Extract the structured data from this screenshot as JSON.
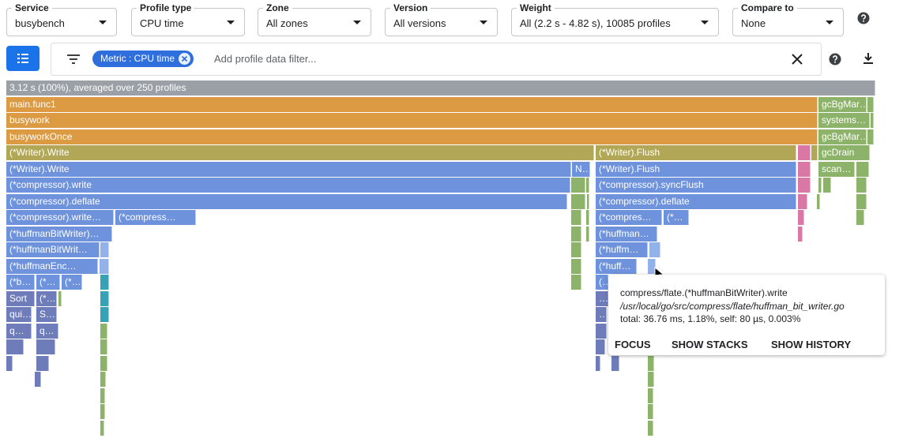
{
  "controls": [
    {
      "label": "Service",
      "value": "busybench"
    },
    {
      "label": "Profile type",
      "value": "CPU time"
    },
    {
      "label": "Zone",
      "value": "All zones"
    },
    {
      "label": "Version",
      "value": "All versions"
    },
    {
      "label": "Weight",
      "value": "All (2.2 s - 4.82 s), 10085 profiles"
    },
    {
      "label": "Compare to",
      "value": "None"
    }
  ],
  "filter": {
    "chip": "Metric : CPU time",
    "placeholder": "Add profile data filter..."
  },
  "flame": {
    "frames": [
      "3.12 s (100%), averaged over 250 profiles",
      "main.func1",
      "gcBgMar…",
      "busywork",
      "systems…",
      "busyworkOnce",
      "gcBgMar…",
      "(*Writer).Write",
      "(*Writer).Flush",
      "gcDrain",
      "(*Writer).Write",
      "N…",
      "(*Writer).Flush",
      "scan…",
      "(*compressor).write",
      "(*compressor).syncFlush",
      "(*compressor).deflate",
      "(*compressor).deflate",
      "(*compressor).write…",
      "(*compress…",
      "(*compres…",
      "(*…",
      "(*huffmanBitWriter)…",
      "(*huffman…",
      "(*huffmanBitWrit…",
      "(*huffm…",
      "(*huffmanEnc…",
      "(*huff…",
      "(*b…",
      "(*…",
      "(*…",
      "(…",
      "Sort",
      "(*…",
      "…",
      "qui…",
      "S…",
      "…",
      "q…",
      "q…"
    ]
  },
  "tooltip": {
    "name": "compress/flate.(*huffmanBitWriter).write",
    "file": "/usr/local/go/src/compress/flate/huffman_bit_writer.go",
    "stats": "total: 36.76 ms, 1.18%, self: 80 µs, 0.003%",
    "actions": [
      "FOCUS",
      "SHOW STACKS",
      "SHOW HISTORY"
    ]
  }
}
